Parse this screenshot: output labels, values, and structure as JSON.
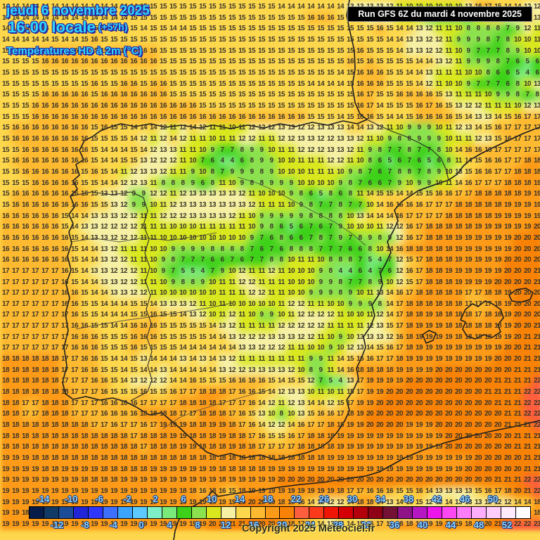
{
  "header": {
    "line1": "jeudi 6 novembre 2025",
    "line2": "16:00 locale",
    "line2_suffix": "(+57h)",
    "line3": "Températures HD à 2m (°C)",
    "text_color": "#2ed7fa",
    "outline_color": "#2a2aa6"
  },
  "run_box": {
    "label": "Run GFS 6Z du mardi 4 novembre 2025"
  },
  "copyright": "Copyright 2025 Meteociel.fr",
  "color_scale": {
    "unit": "°C",
    "min": -14,
    "step": 2,
    "colors": [
      "#071c48",
      "#113a67",
      "#1b4c97",
      "#2026d8",
      "#2f36fd",
      "#3f70fd",
      "#3aa4fe",
      "#5ccafe",
      "#7eeec6",
      "#79e97c",
      "#3ed119",
      "#8ce24e",
      "#d9e81e",
      "#f5f0a4",
      "#fdd74c",
      "#fdba30",
      "#fd9b18",
      "#f88205",
      "#fd5f3e",
      "#fb3a1c",
      "#ee1504",
      "#d50003",
      "#b3000a",
      "#8e0016",
      "#731235",
      "#8e1388",
      "#b517c3",
      "#ec13ec",
      "#fb48f3",
      "#fd7cfa",
      "#feaefd",
      "#fecdfe",
      "#ffeaff",
      "#ffffff"
    ],
    "labels_top": [
      "-14",
      "-10",
      "-6",
      "-2",
      "2",
      "6",
      "10",
      "14",
      "18",
      "22",
      "26",
      "30",
      "34",
      "38",
      "42",
      "46",
      "50"
    ],
    "labels_bottom": [
      "-12",
      "-8",
      "-4",
      "0",
      "4",
      "8",
      "12",
      "16",
      "20",
      "24",
      "28",
      "32",
      "36",
      "40",
      "44",
      "48",
      "52"
    ],
    "label_color": "#8ed2f6"
  },
  "map_grid": {
    "cols": 55,
    "rows": 48,
    "unit": "°C",
    "values": [
      "14 14 14 14 14 14 14 14 14 14 14 14 14 14 15 15 15 15 15 15 15 15 15 15 15 15 15 15 14 14 14 14 14 14 14 13 13 13 13 12 11 10 10 10 10 10 10 13 16 17 15 14 14 12 12",
      "14 14 14 14 14 14 14 14 14 14 14 14 14 15 15 15 15 15 15 15 15 15 15 15 15 15 15 15 15 15 15 16 16 16 15 14 14 13 12 12 11 11 10 9 8 8 8 8 11 14 14 12 13 14 13",
      "14 14 14 14 14 14 14 14 14 15 15 15 15 15 14 15 15 14 14 15 15 15 15 15 15 15 15 15 15 15 15 15 15 15 15 15 15 15 16 15 14 14 13 12 11 11 10 8 8 8 8 7 9 12 11",
      "14 14 14 14 14 15 14 14 15 16 15 15 15 15 15 15 15 15 15 15 15 15 15 15 15 15 15 15 15 15 15 15 15 15 15 15 15 15 15 14 14 13 13 12 12 11 9 9 9 8 7 8 10 10 11",
      "15 15 15 15 16 16 16 16 16 15 15 16 16 16 16 16 15 15 15 15 15 15 15 15 15 15 15 15 15 15 15 15 15 15 15 15 16 15 15 15 14 13 13 12 12 11 10 9 7 7 7 8 9 10 10",
      "15 15 15 15 16 16 16 16 16 16 16 16 16 16 16 16 15 15 15 15 15 15 15 15 15 15 15 15 15 15 15 15 15 15 15 16 15 16 15 15 15 15 14 14 13 12 11 9 9 9 8 7 6 5 6",
      "15 15 15 15 15 15 15 15 15 15 15 15 15 15 15 15 15 15 15 15 15 15 15 15 15 15 15 15 15 15 15 15 15 15 14 15 16 16 16 15 15 14 14 13 11 11 11 10 10 8 6 6 5 4 6",
      "15 15 15 15 15 15 15 15 15 16 15 15 16 16 15 16 16 15 15 15 15 15 15 15 15 15 15 15 15 15 15 14 14 14 14 15 16 16 16 15 15 15 14 12 11 10 10 9 7 7 7 6 8 10 13",
      "15 15 15 15 16 16 16 16 16 15 16 16 16 16 16 16 16 15 15 15 15 15 15 15 15 15 15 15 15 15 15 15 15 15 15 15 16 17 15 15 16 16 16 16 15 13 11 11 11 10 9 9 8 7 8",
      "15 15 15 16 16 16 16 16 16 16 16 16 16 16 16 16 16 16 16 16 15 15 15 15 15 15 15 15 15 15 15 15 15 15 15 15 16 17 14 15 15 15 16 17 16 15 13 12 12 11 11 11 10 12 13",
      "15 15 15 16 16 16 16 16 16 16 16 16 16 16 16 16 16 16 16 16 16 16 16 16 16 16 16 16 16 16 16 15 15 15 14 15 16 16 15 14 14 15 16 16 16 16 15 14 13 13 14 15 16 17 17",
      "15 16 16 16 16 16 16 16 16 15 16 15 15 14 14 14 12 11 12 14 12 11 11 10 11 12 12 12 13 13 12 12 13 13 13 14 14 13 12 11 10 9 9 9 10 11 12 13 14 15 16 17 17 17 17",
      "15 16 16 16 16 16 16 16 16 15 15 15 15 14 12 11 12 14 12 11 11 10 11 11 12 12 11 11 12 12 13 13 12 12 13 13 12 11 10 9 8 8 9 9 9 10 11 11 12 13 15 16 17 17 17",
      "15 15 16 16 16 16 16 16 16 15 14 14 14 15 14 12 13 13 11 11 10 9 7 7 8 9 9 10 11 11 12 12 12 13 13 12 11 9 8 7 7 8 7 7 8 10 14 16 16 16 17 17 17 17 17",
      "15 16 16 16 16 16 16 16 16 15 14 14 15 15 13 12 12 12 11 10 7 6 4 4 6 8 9 9 10 10 11 11 11 12 12 11 10 8 6 5 6 7 6 5 6 8 11 14 15 16 16 17 17 18 18",
      "15 15 16 16 16 16 16 16 15 16 15 14 11 12 13 13 12 11 11 9 10 8 7 9 9 9 8 9 10 10 10 11 11 11 10 9 8 7 6 7 8 8 7 8 9 10 13 15 16 16 17 17 18 18 18",
      "15 15 15 16 16 16 16 16 15 15 14 14 12 12 13 11 8 8 8 9 6 8 11 10 9 8 8 9 9 9 10 10 10 10 9 8 7 6 6 7 9 10 9 9 10 11 14 16 17 17 17 18 18 18 19",
      "15 16 16 16 16 16 16 16 16 15 13 13 12 9 9 12 12 11 12 13 13 13 13 13 12 11 10 10 10 9 8 6 5 8 6 8 11 14 15 15 14 14 15 15 16 16 17 17 18 18 18 18 18 19 19",
      "15 16 16 16 16 16 16 16 16 15 15 13 12 9 9 10 11 12 13 13 13 13 13 13 13 12 11 11 11 10 9 8 7 7 8 7 7 10 14 16 16 16 16 17 17 17 18 18 18 18 18 19 19 19 19",
      "16 16 16 16 16 16 15 14 14 13 13 13 12 12 11 11 12 12 12 13 13 13 13 12 11 10 9 9 9 9 9 8 8 8 8 10 13 14 14 14 16 17 17 17 17 18 18 18 18 18 19 19 19 19 19",
      "16 16 16 16 16 16 15 14 13 13 12 12 12 12 11 11 11 10 10 10 11 11 11 11 11 10 9 8 6 5 6 7 6 7 9 10 10 10 11 12 12 16 17 18 18 18 18 18 19 19 19 19 19 19 20",
      "16 16 16 16 16 16 16 15 14 13 13 12 12 12 11 11 10 10 10 10 10 10 10 10 10 9 7 6 8 6 6 7 8 7 9 7 8 9 8 9 12 16 17 18 18 18 19 19 19 19 19 19 20 20 20",
      "16 16 16 16 16 16 16 15 14 14 13 12 11 11 11 10 10 9 9 9 9 8 8 8 8 7 6 7 6 8 8 8 7 7 7 6 6 8 10 14 16 18 18 18 18 18 19 19 19 19 19 19 20 20 20",
      "16 16 16 16 16 16 16 15 14 14 13 12 12 11 11 10 9 8 7 7 7 6 6 7 6 7 7 8 8 10 11 11 10 8 8 8 7 5 4 7 12 15 17 18 18 18 19 19 19 19 19 20 20 20 20",
      "17 17 17 17 17 17 16 15 14 13 13 12 12 12 11 10 9 7 5 5 4 7 9 10 12 11 11 12 11 10 10 10 9 8 4 4 6 4 7 6 12 16 17 18 18 19 19 19 19 19 19 20 20 20 21",
      "17 17 17 17 17 17 16 15 14 14 13 13 12 12 11 11 10 9 8 8 9 10 11 11 12 12 11 11 11 10 10 10 9 9 8 7 7 8 9 10 12 15 17 18 18 18 19 19 19 19 20 20 20 20 21",
      "17 17 17 17 17 17 16 16 15 14 14 13 13 12 12 11 10 10 10 10 10 10 11 11 11 12 12 11 11 10 10 9 9 9 8 9 10 11 13 14 16 17 18 18 18 18 19 17 17 18 18 19 20 20 20",
      "17 17 17 17 17 17 16 16 15 15 14 14 14 15 15 14 13 13 13 12 11 10 11 10 10 10 10 10 11 12 12 11 11 10 10 9 9 9 8 14 17 18 18 18 18 18 18 17 17 17 18 19 20 20 20",
      "17 17 17 17 17 17 17 16 15 15 14 14 14 15 15 16 15 15 14 13 12 10 11 12 11 10 9 9 10 11 12 12 12 12 11 10 10 11 12 14 17 18 18 19 18 18 18 18 17 18 18 19 20 20 20",
      "17 17 17 17 17 17 17 16 16 15 15 14 14 16 16 16 15 15 15 15 15 14 13 12 11 11 11 11 12 12 12 12 12 11 11 11 11 12 13 15 17 18 19 19 19 18 18 18 18 18 18 19 20 20 21",
      "17 17 17 17 17 17 17 16 16 16 15 15 15 16 16 16 15 15 15 15 15 14 14 13 12 12 12 13 13 13 12 12 11 10 9 10 13 13 13 12 16 18 19 19 19 19 18 18 18 18 19 19 20 21 21",
      "17 17 17 17 17 17 17 16 16 16 15 15 15 16 15 15 15 15 14 14 14 14 14 14 13 13 12 12 12 11 11 10 10 9 10 12 13 14 15 16 17 18 19 19 19 19 19 19 19 19 19 20 20 21 21",
      "18 18 18 18 18 18 17 17 16 16 15 14 14 15 13 14 14 14 13 14 13 14 13 12 11 11 11 11 11 11 11 9 9 11 14 15 16 16 17 17 18 19 19 19 19 19 19 19 19 19 20 20 20 21 21",
      "18 18 18 18 18 18 17 17 16 16 15 15 14 15 14 14 13 14 14 14 14 14 13 12 12 13 13 13 13 12 10 8 9 11 14 16 18 18 18 18 19 19 19 19 20 20 20 20 20 20 20 20 21 21 21",
      "18 18 18 18 18 18 17 17 17 16 16 15 14 13 12 12 12 14 14 16 15 15 15 16 16 16 16 15 14 15 15 12 7 5 4 13 17 19 19 19 19 20 20 20 20 20 20 20 20 20 21 21 21 21 22",
      "18 18 18 18 18 18 18 17 17 17 16 15 15 15 16 15 15 16 17 17 18 18 18 17 16 16 15 14 12 13 13 10 11 10 11 15 17 19 19 20 20 20 20 20 20 20 20 20 20 21 21 21 21 22 22",
      "18 18 17 17 18 18 18 17 17 17 16 16 16 16 17 17 17 17 18 18 18 18 17 17 17 16 14 12 11 12 13 14 14 12 15 17 19 19 20 20 20 20 20 20 20 20 20 20 20 20 21 21 21 22 22",
      "18 18 17 17 18 18 18 17 17 17 16 16 16 16 18 18 18 18 17 17 18 18 18 17 16 15 13 10 8 10 13 15 16 16 17 18 19 20 20 20 20 20 20 20 20 20 20 20 20 20 20 21 21 22 22",
      "18 18 18 18 18 18 18 18 18 17 17 16 17 17 16 17 19 19 19 18 18 19 19 18 17 16 14 12 12 14 16 17 17 18 18 19 19 20 20 20 20 19 19 19 20 20 20 20 20 20 20 21 21 21 22",
      "18 18 18 18 18 18 18 18 18 18 18 18 18 17 18 18 18 19 19 18 18 18 19 18 18 17 16 15 15 16 17 18 18 18 19 19 19 19 19 19 19 19 19 19 19 20 20 20 20 20 20 20 21 21 21",
      "18 18 18 18 18 18 18 18 18 18 18 18 18 18 17 18 18 18 19 19 18 18 18 19 18 18 17 17 17 17 18 18 18 18 19 19 19 19 19 19 19 19 19 19 19 20 20 20 20 20 20 20 21 21 21",
      "19 19 19 18 18 18 18 18 18 18 18 18 18 18 18 18 18 18 18 18 18 18 18 18 18 18 18 18 18 18 18 18 18 19 19 19 19 19 19 19 19 19 19 19 19 19 19 19 20 20 20 20 20 21 21",
      "19 19 19 19 18 18 19 19 19 19 18 18 18 18 18 19 19 19 19 19 19 19 18 18 18 18 18 19 19 19 19 19 19 19 19 19 19 19 19 19 19 19 19 19 19 19 19 20 20 20 20 20 20 21 21",
      "19 19 19 19 19 19 19 19 18 18 18 18 19 19 19 19 19 19 19 19 19 19 18 19 19 19 19 19 20 20 20 20 20 20 20 20 20 20 20 20 20 20 20 20 20 20 20 20 20 20 21 21 21 22 22",
      "19 19 19 19 19 19 19 19 19 19 19 19 19 19 19 19 19 19 18 18 16 18 16 15 18 19 19 19 19 19 19 19 19 19 18 17 17 16 16 16 15 15 16 14 13 13 13 13 15 16 17 18 20 21 22",
      "19 19 19 19 19 19 19 19 19 19 19 19 19 19 19 19 19 19 19 19 19 19 19 19 20 20 20 19 18 18 16 14 12 12 12 14 18 18 14 13 14 15 15 12 12 14 13 13 13 12 12 12 14 14 18",
      "19 19 18 19 19 19 19 19 19 19 19 19 19 19 19 19 19 19 19 19 19 19 19 19 20 21 21 20 20 19 18 17 14 13 14 15 12 12 14 13 13 13 12 12 14 14 15 16 17 19 20 21 20 19 18",
      "19 19 19 19 19 19 19 19 19 19 19 19 19 19 19 19 19 19 19 19 19 20 21 21 21 20 20 20 19 18 17 15 14 13 14 14 15 16 17 17 18 18 18 19 19 20 19 18 19 20 21 22 22 22 23"
    ]
  }
}
